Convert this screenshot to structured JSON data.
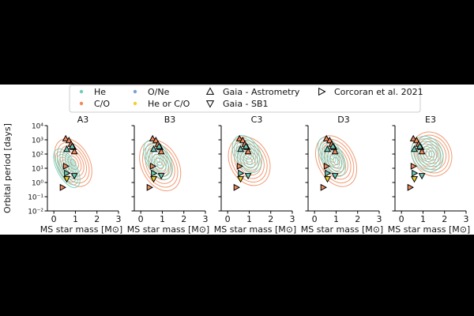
{
  "legend": {
    "items": [
      {
        "label": "He",
        "marker": "dot",
        "color": "#6ecdb8"
      },
      {
        "label": "C/O",
        "marker": "dot",
        "color": "#f08a5c"
      },
      {
        "label": "O/Ne",
        "marker": "dot",
        "color": "#7b9fd4"
      },
      {
        "label": "He or C/O",
        "marker": "dot",
        "color": "#f2d227"
      },
      {
        "label": "Gaia - Astrometry",
        "marker": "triangle-up",
        "color": "#000000"
      },
      {
        "label": "Gaia - SB1",
        "marker": "triangle-down",
        "color": "#000000"
      },
      {
        "label": "Corcoran et al. 2021",
        "marker": "triangle-right",
        "color": "#000000"
      }
    ]
  },
  "chart_data": {
    "type": "scatter",
    "ylabel": "Orbital period [days]",
    "xlabel": "MS star mass [M⊙]",
    "xlim": [
      -0.3,
      3
    ],
    "ylim": [
      0.01,
      10000
    ],
    "yscale": "log",
    "xticks": [
      "0",
      "1",
      "2",
      "3"
    ],
    "yticks": [
      "10⁻²",
      "10⁰",
      "10²",
      "10⁴"
    ],
    "yminor_ticks": [
      "10⁻¹",
      "10¹",
      "10³"
    ],
    "panels": [
      {
        "title": "A3",
        "he_contour": {
          "cx": 0.6,
          "cy": 1.0,
          "sx": 0.45,
          "sy": 1.5
        },
        "co_contour": {
          "cx": 0.9,
          "cy": 1.4,
          "sx": 0.75,
          "sy": 1.8
        }
      },
      {
        "title": "B3",
        "he_contour": {
          "cx": 0.8,
          "cy": 1.6,
          "sx": 0.55,
          "sy": 1.5
        },
        "co_contour": {
          "cx": 0.9,
          "cy": 1.2,
          "sx": 0.85,
          "sy": 1.9
        }
      },
      {
        "title": "C3",
        "he_contour": {
          "cx": 0.9,
          "cy": 2.0,
          "sx": 0.6,
          "sy": 1.4
        },
        "co_contour": {
          "cx": 1.0,
          "cy": 1.5,
          "sx": 0.9,
          "sy": 1.8
        }
      },
      {
        "title": "D3",
        "he_contour": {
          "cx": 0.8,
          "cy": 1.8,
          "sx": 0.5,
          "sy": 1.5
        },
        "co_contour": {
          "cx": 1.0,
          "cy": 1.5,
          "sx": 0.85,
          "sy": 1.9
        }
      },
      {
        "title": "E3",
        "he_contour": {
          "cx": 1.2,
          "cy": 2.0,
          "sx": 0.7,
          "sy": 1.3
        },
        "co_contour": {
          "cx": 1.4,
          "cy": 2.0,
          "sx": 0.9,
          "sy": 1.6
        }
      }
    ],
    "observations": [
      {
        "x": 0.55,
        "y": 1200,
        "marker": "triangle-up",
        "color": "#f08a5c"
      },
      {
        "x": 0.7,
        "y": 900,
        "marker": "triangle-up",
        "color": "#f08a5c"
      },
      {
        "x": 0.8,
        "y": 500,
        "marker": "triangle-up",
        "color": "#f08a5c"
      },
      {
        "x": 0.9,
        "y": 300,
        "marker": "triangle-up",
        "color": "#f08a5c"
      },
      {
        "x": 0.95,
        "y": 150,
        "marker": "triangle-up",
        "color": "#f08a5c"
      },
      {
        "x": 0.6,
        "y": 220,
        "marker": "triangle-up",
        "color": "#6ecdb8"
      },
      {
        "x": 0.85,
        "y": 350,
        "marker": "triangle-up",
        "color": "#6ecdb8"
      },
      {
        "x": 0.55,
        "y": 14,
        "marker": "triangle-right",
        "color": "#f08a5c"
      },
      {
        "x": 0.6,
        "y": 4.5,
        "marker": "triangle-right",
        "color": "#6ecdb8"
      },
      {
        "x": 0.6,
        "y": 1.8,
        "marker": "triangle-down",
        "color": "#f2d227"
      },
      {
        "x": 0.4,
        "y": 0.45,
        "marker": "triangle-right",
        "color": "#f08a5c"
      },
      {
        "x": 0.95,
        "y": 3.0,
        "marker": "triangle-down",
        "color": "#6ecdb8"
      }
    ]
  }
}
